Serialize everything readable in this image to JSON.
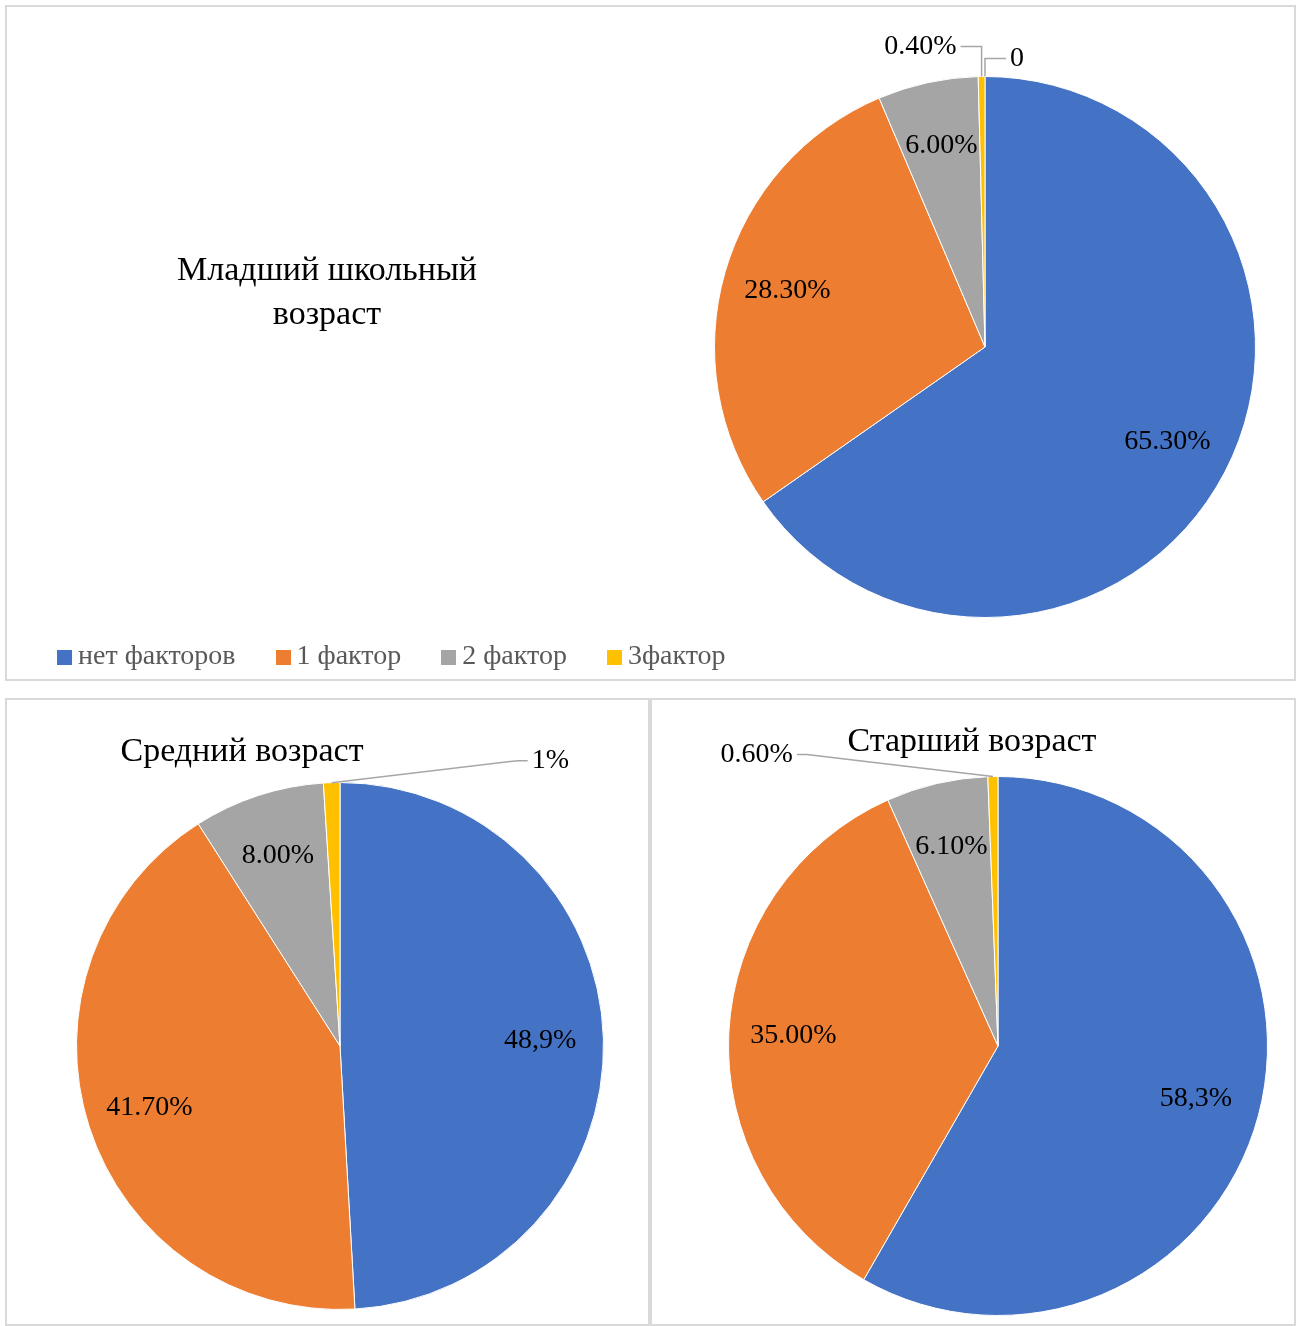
{
  "chart_data": [
    {
      "type": "pie",
      "title": "Младший школьный возраст",
      "categories": [
        "нет факторов",
        "1 фактор",
        "2 фактор",
        "3фактор",
        null
      ],
      "values": [
        65.3,
        28.3,
        6.0,
        0.4,
        0
      ],
      "value_labels": [
        "65.30%",
        "28.30%",
        "6.00%",
        "0.40%",
        "0"
      ],
      "colors": [
        "#4472c4",
        "#ed7d31",
        "#a5a5a5",
        "#ffc000",
        "#5b9bd5"
      ],
      "legend": "bottom"
    },
    {
      "type": "pie",
      "title": "Средний возраст",
      "categories": [
        null,
        null,
        null,
        null
      ],
      "values": [
        48.9,
        41.7,
        8.0,
        1
      ],
      "value_labels": [
        "48,9%",
        "41.70%",
        "8.00%",
        "1%"
      ],
      "colors": [
        "#4472c4",
        "#ed7d31",
        "#a5a5a5",
        "#ffc000"
      ]
    },
    {
      "type": "pie",
      "title": "Старший возраст",
      "categories": [
        null,
        null,
        null,
        null
      ],
      "values": [
        58.3,
        35.0,
        6.1,
        0.6
      ],
      "value_labels": [
        "58,3%",
        "35.00%",
        "6.10%",
        "0.60%"
      ],
      "colors": [
        "#4472c4",
        "#ed7d31",
        "#a5a5a5",
        "#ffc000"
      ]
    }
  ]
}
